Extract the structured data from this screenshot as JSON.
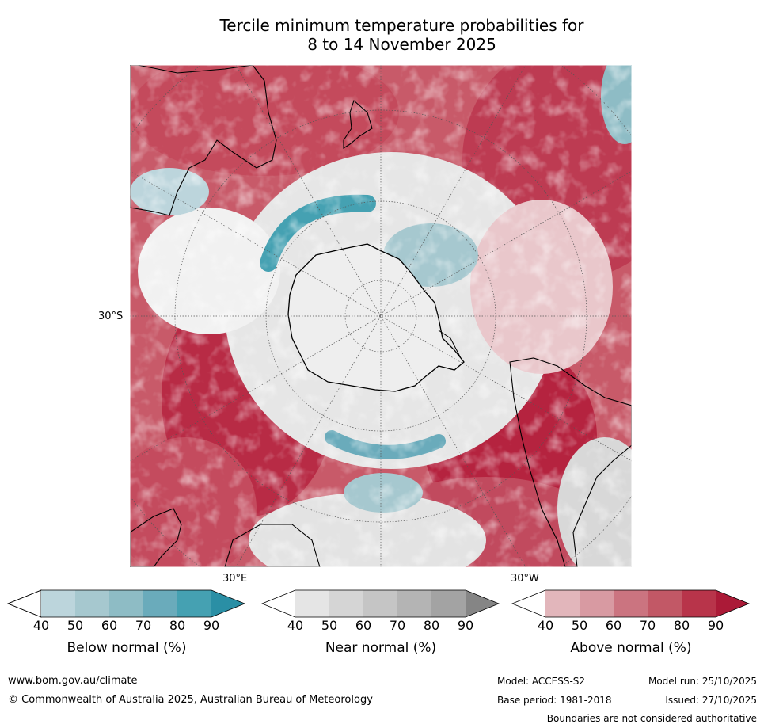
{
  "title": {
    "line1": "Tercile minimum temperature probabilities for",
    "line2": "8 to 14 November 2025"
  },
  "map": {
    "labels": {
      "lat": "30°S",
      "lon_east": "30°E",
      "lon_west": "30°W"
    }
  },
  "colorbars": [
    {
      "title": "Below normal (%)",
      "ticks": [
        "40",
        "50",
        "60",
        "70",
        "80",
        "90"
      ],
      "colors": [
        "#ffffff",
        "#bcd5dc",
        "#a6c8cf",
        "#8ebcc5",
        "#6aabbb",
        "#45a1b2",
        "#2a8fa5"
      ]
    },
    {
      "title": "Near normal (%)",
      "ticks": [
        "40",
        "50",
        "60",
        "70",
        "80",
        "90"
      ],
      "colors": [
        "#ffffff",
        "#e5e5e5",
        "#d5d5d5",
        "#c5c5c5",
        "#b4b4b4",
        "#a3a3a3",
        "#858585"
      ]
    },
    {
      "title": "Above normal (%)",
      "ticks": [
        "40",
        "50",
        "60",
        "70",
        "80",
        "90"
      ],
      "colors": [
        "#ffffff",
        "#e2b6bb",
        "#d89aa2",
        "#cb7480",
        "#c25866",
        "#b8344a",
        "#ab1a37"
      ]
    }
  ],
  "footer": {
    "website": "www.bom.gov.au/climate",
    "copyright": "© Commonwealth of Australia 2025, Australian Bureau of Meteorology",
    "model": "Model: ACCESS-S2",
    "base_period": "Base period: 1981-2018",
    "model_run": "Model run: 25/10/2025",
    "issued": "Issued: 27/10/2025",
    "boundaries": "Boundaries are not considered authoritative"
  }
}
